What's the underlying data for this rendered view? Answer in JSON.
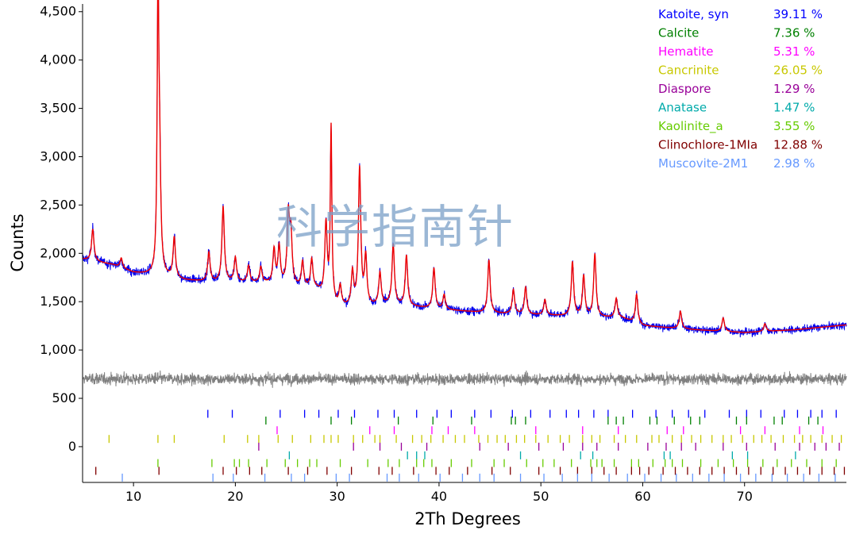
{
  "chart_data": {
    "type": "line",
    "xlabel": "2Th Degrees",
    "ylabel": "Counts",
    "xlim": [
      5,
      80
    ],
    "ylim": [
      -370,
      4580
    ],
    "x_ticks": [
      {
        "value": 10,
        "label": "10"
      },
      {
        "value": 20,
        "label": "20"
      },
      {
        "value": 30,
        "label": "30"
      },
      {
        "value": 40,
        "label": "40"
      },
      {
        "value": 50,
        "label": "50"
      },
      {
        "value": 60,
        "label": "60"
      },
      {
        "value": 70,
        "label": "70"
      }
    ],
    "y_ticks": [
      {
        "value": 0,
        "label": "0"
      },
      {
        "value": 500,
        "label": "500"
      },
      {
        "value": 1000,
        "label": "1,000"
      },
      {
        "value": 1500,
        "label": "1,500"
      },
      {
        "value": 2000,
        "label": "2,000"
      },
      {
        "value": 2500,
        "label": "2,500"
      },
      {
        "value": 3000,
        "label": "3,000"
      },
      {
        "value": 3500,
        "label": "3,500"
      },
      {
        "value": 4000,
        "label": "4,000"
      },
      {
        "value": 4500,
        "label": "4,500"
      }
    ],
    "watermark": "科学指南针",
    "colors": {
      "observed": "#0000ee",
      "calculated": "#ee0000",
      "difference": "#808080"
    },
    "background": {
      "points": [
        [
          5,
          1940
        ],
        [
          8,
          1880
        ],
        [
          10,
          1800
        ],
        [
          12,
          1770
        ],
        [
          15,
          1720
        ],
        [
          18,
          1700
        ],
        [
          20,
          1700
        ],
        [
          23,
          1690
        ],
        [
          25,
          1660
        ],
        [
          28,
          1620
        ],
        [
          30,
          1450
        ],
        [
          32,
          1430
        ],
        [
          35,
          1470
        ],
        [
          38,
          1440
        ],
        [
          40,
          1420
        ],
        [
          45,
          1380
        ],
        [
          50,
          1360
        ],
        [
          55,
          1340
        ],
        [
          58,
          1330
        ],
        [
          60,
          1250
        ],
        [
          65,
          1210
        ],
        [
          70,
          1180
        ],
        [
          75,
          1210
        ],
        [
          80,
          1260
        ]
      ]
    },
    "peaks": [
      [
        6.0,
        330
      ],
      [
        8.8,
        100
      ],
      [
        12.4,
        2720
      ],
      [
        12.55,
        1200
      ],
      [
        14.0,
        420
      ],
      [
        17.4,
        300
      ],
      [
        18.8,
        780
      ],
      [
        20.0,
        250
      ],
      [
        21.3,
        170
      ],
      [
        22.5,
        160
      ],
      [
        23.8,
        350
      ],
      [
        24.3,
        380
      ],
      [
        25.2,
        700
      ],
      [
        25.45,
        520
      ],
      [
        26.6,
        260
      ],
      [
        27.5,
        300
      ],
      [
        28.9,
        750
      ],
      [
        29.4,
        1780
      ],
      [
        30.3,
        200
      ],
      [
        31.5,
        350
      ],
      [
        32.2,
        1430
      ],
      [
        32.8,
        500
      ],
      [
        34.2,
        330
      ],
      [
        35.5,
        620
      ],
      [
        36.8,
        520
      ],
      [
        39.5,
        420
      ],
      [
        40.5,
        150
      ],
      [
        44.9,
        550
      ],
      [
        47.3,
        250
      ],
      [
        48.5,
        280
      ],
      [
        50.4,
        160
      ],
      [
        53.1,
        560
      ],
      [
        54.2,
        420
      ],
      [
        55.3,
        650
      ],
      [
        57.4,
        200
      ],
      [
        59.4,
        300
      ],
      [
        63.7,
        180
      ],
      [
        67.9,
        140
      ],
      [
        72.0,
        80
      ]
    ],
    "difference": {
      "baseline": 700,
      "noise": 40
    },
    "series": [
      {
        "name": "Katoite, syn",
        "percent": "39.11 %",
        "color": "#0000ff",
        "row_y": 340,
        "x": [
          17.3,
          19.7,
          24.4,
          26.8,
          28.2,
          30.1,
          31.7,
          34.0,
          35.6,
          37.8,
          39.8,
          41.2,
          43.5,
          45.1,
          47.2,
          49.0,
          50.9,
          52.5,
          53.7,
          55.2,
          56.6,
          59.0,
          61.3,
          62.9,
          64.5,
          66.1,
          68.5,
          70.2,
          71.6,
          73.9,
          75.2,
          76.5,
          77.6,
          79.0
        ]
      },
      {
        "name": "Calcite",
        "percent": "7.36 %",
        "color": "#008000",
        "row_y": 270,
        "x": [
          23.0,
          29.4,
          31.4,
          36.0,
          39.4,
          43.2,
          47.1,
          47.5,
          48.5,
          56.6,
          57.4,
          58.1,
          60.7,
          61.4,
          63.1,
          64.7,
          65.6,
          69.2,
          70.2,
          72.9,
          73.7,
          76.3,
          77.2
        ]
      },
      {
        "name": "Hematite",
        "percent": "5.31 %",
        "color": "#ff00ff",
        "row_y": 170,
        "x": [
          24.1,
          33.2,
          35.6,
          39.3,
          40.9,
          43.5,
          49.5,
          54.1,
          57.6,
          62.4,
          64.0,
          69.6,
          72.0,
          75.4,
          77.7
        ]
      },
      {
        "name": "Cancrinite",
        "percent": "26.05 %",
        "color": "#c8c800",
        "row_y": 80,
        "x": [
          7.6,
          12.4,
          14.0,
          18.9,
          21.2,
          22.3,
          24.2,
          25.6,
          27.4,
          28.7,
          29.4,
          30.1,
          31.6,
          32.5,
          33.7,
          34.2,
          35.8,
          37.4,
          38.3,
          39.2,
          40.4,
          41.6,
          42.5,
          43.9,
          44.8,
          45.7,
          46.5,
          47.6,
          48.4,
          49.5,
          50.7,
          51.9,
          52.8,
          54.1,
          55.0,
          55.8,
          57.2,
          58.3,
          59.4,
          60.9,
          61.6,
          62.9,
          63.8,
          64.8,
          65.7,
          66.8,
          67.9,
          68.7,
          69.8,
          70.9,
          71.7,
          72.6,
          73.8,
          74.9,
          75.7,
          76.5,
          77.6,
          78.6,
          79.5
        ]
      },
      {
        "name": "Diaspore",
        "percent": "1.29 %",
        "color": "#990099",
        "row_y": 0,
        "x": [
          22.3,
          31.6,
          34.2,
          36.3,
          38.8,
          44.0,
          46.8,
          49.8,
          52.2,
          54.1,
          55.5,
          57.6,
          60.5,
          62.3,
          63.8,
          65.2,
          67.9,
          70.2,
          73.0,
          75.4,
          76.9,
          78.0,
          79.3
        ]
      },
      {
        "name": "Anatase",
        "percent": "1.47 %",
        "color": "#00aaaa",
        "row_y": -90,
        "x": [
          25.3,
          36.9,
          37.8,
          38.6,
          48.0,
          53.9,
          55.1,
          62.1,
          62.7,
          68.8,
          70.3,
          75.0
        ]
      },
      {
        "name": "Kaolinite_a",
        "percent": "3.55 %",
        "color": "#66cc00",
        "row_y": -170,
        "x": [
          12.4,
          17.7,
          19.9,
          20.4,
          21.3,
          23.1,
          24.9,
          26.1,
          27.3,
          28.0,
          30.3,
          33.0,
          35.0,
          36.1,
          37.8,
          38.5,
          39.3,
          41.2,
          43.2,
          45.4,
          46.4,
          48.6,
          50.2,
          51.3,
          53.0,
          54.9,
          55.5,
          56.0,
          57.2,
          58.9,
          59.6,
          61.0,
          62.2,
          62.9,
          63.9,
          65.7,
          67.4,
          68.9,
          70.3,
          71.8,
          73.2,
          74.6,
          76.1,
          77.6,
          79.0
        ]
      },
      {
        "name": "Clinochlore-1MIa",
        "percent": "12.88 %",
        "color": "#800000",
        "row_y": -250,
        "x": [
          6.3,
          12.5,
          18.8,
          20.1,
          21.4,
          22.6,
          25.2,
          27.1,
          29.0,
          31.4,
          34.1,
          35.4,
          37.5,
          39.7,
          41.0,
          42.8,
          45.2,
          47.0,
          49.8,
          51.9,
          53.6,
          55.0,
          56.2,
          57.4,
          58.9,
          59.7,
          60.6,
          62.0,
          63.2,
          64.4,
          65.6,
          66.8,
          68.0,
          69.2,
          70.4,
          71.6,
          72.8,
          74.0,
          75.2,
          76.4,
          77.6,
          78.8,
          79.8
        ]
      },
      {
        "name": "Muscovite-2M1",
        "percent": "2.98 %",
        "color": "#6699ff",
        "row_y": -320,
        "x": [
          8.9,
          17.8,
          19.8,
          22.9,
          25.5,
          26.8,
          29.9,
          31.2,
          34.9,
          36.1,
          38.0,
          40.1,
          42.3,
          44.0,
          45.4,
          48.0,
          50.3,
          52.1,
          53.6,
          55.0,
          56.7,
          58.5,
          60.2,
          61.8,
          63.3,
          64.9,
          66.5,
          68.0,
          69.6,
          71.1,
          72.7,
          74.2,
          75.8,
          77.3,
          78.9
        ]
      }
    ]
  }
}
